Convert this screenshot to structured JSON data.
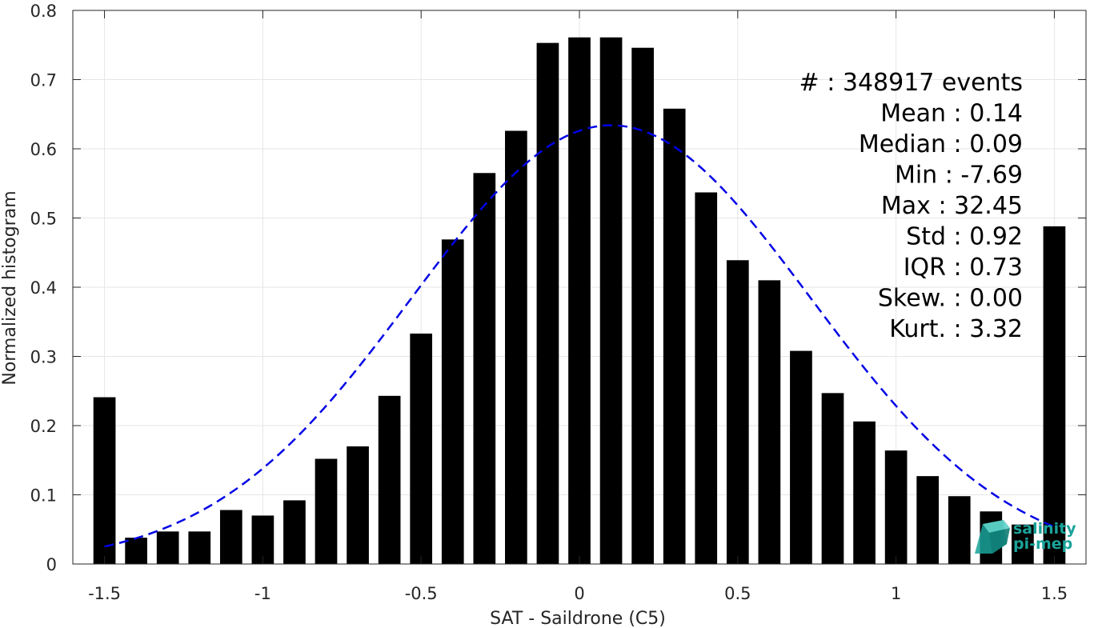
{
  "chart_data": {
    "type": "bar",
    "title": "",
    "xlabel": "SAT - Saildrone (C5)",
    "ylabel": "Normalized histogram",
    "xlim": [
      -1.6,
      1.6
    ],
    "ylim": [
      0,
      0.8
    ],
    "xticks": [
      -1.5,
      -1,
      -0.5,
      0,
      0.5,
      1,
      1.5
    ],
    "xtick_labels": [
      "-1.5",
      "-1",
      "-0.5",
      "0",
      "0.5",
      "1",
      "1.5"
    ],
    "yticks": [
      0,
      0.1,
      0.2,
      0.3,
      0.4,
      0.5,
      0.6,
      0.7,
      0.8
    ],
    "ytick_labels": [
      "0",
      "0.1",
      "0.2",
      "0.3",
      "0.4",
      "0.5",
      "0.6",
      "0.7",
      "0.8"
    ],
    "grid": true,
    "bar_width": 0.07,
    "bar_color": "#000000",
    "bars": {
      "x": [
        -1.5,
        -1.4,
        -1.3,
        -1.2,
        -1.1,
        -1.0,
        -0.9,
        -0.8,
        -0.7,
        -0.6,
        -0.5,
        -0.4,
        -0.3,
        -0.2,
        -0.1,
        0.0,
        0.1,
        0.2,
        0.3,
        0.4,
        0.5,
        0.6,
        0.7,
        0.8,
        0.9,
        1.0,
        1.1,
        1.2,
        1.3,
        1.4,
        1.5
      ],
      "values": [
        0.241,
        0.038,
        0.047,
        0.047,
        0.078,
        0.07,
        0.092,
        0.152,
        0.17,
        0.243,
        0.333,
        0.469,
        0.565,
        0.626,
        0.753,
        0.761,
        0.761,
        0.746,
        0.658,
        0.537,
        0.439,
        0.41,
        0.308,
        0.247,
        0.206,
        0.164,
        0.127,
        0.098,
        0.076,
        0.057,
        0.488
      ]
    },
    "fit": {
      "style": "dashed",
      "color": "#0000e6",
      "mean": 0.1,
      "std": 0.63,
      "peak": 0.634,
      "xrange": [
        -1.5,
        1.5
      ]
    },
    "stats": [
      {
        "label": "#",
        "sep": " : ",
        "value": "348917 events"
      },
      {
        "label": "Mean",
        "sep": " : ",
        "value": "0.14"
      },
      {
        "label": "Median",
        "sep": " : ",
        "value": "0.09"
      },
      {
        "label": "Min",
        "sep": " : ",
        "value": "-7.69"
      },
      {
        "label": "Max",
        "sep": " : ",
        "value": "32.45"
      },
      {
        "label": "Std",
        "sep": " : ",
        "value": "0.92"
      },
      {
        "label": "IQR",
        "sep": " : ",
        "value": "0.73"
      },
      {
        "label": "Skew.",
        "sep": " : ",
        "value": "0.00"
      },
      {
        "label": "Kurt.",
        "sep": " : ",
        "value": "3.32"
      }
    ],
    "logo": {
      "line1": "salinity",
      "line2": "pi-mep",
      "color": "#1aa39a"
    }
  }
}
